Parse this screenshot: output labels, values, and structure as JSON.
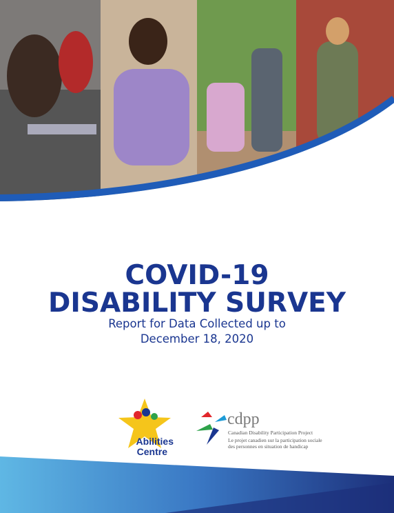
{
  "title": {
    "lines": [
      "COVID-19",
      "DISABILITY SURVEY"
    ]
  },
  "subtitle": {
    "lines": [
      "Report for Data Collected up to",
      "December 18, 2020"
    ]
  },
  "logos": {
    "abilities_centre": [
      "Abilities",
      "Centre"
    ],
    "cdpp": {
      "acronym": "cdpp",
      "name": "Canadian Disability Participation Project",
      "french": [
        "Le projet canadien sur la participation sociale",
        "des personnes en situation de handicap"
      ]
    }
  }
}
